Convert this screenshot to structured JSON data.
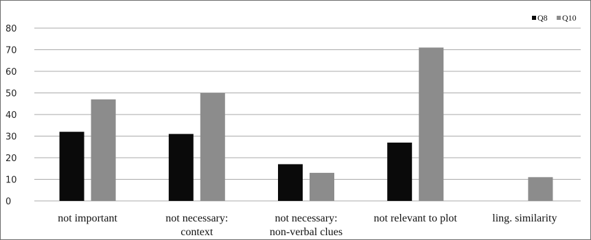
{
  "chart_data": {
    "type": "bar",
    "categories": [
      [
        "not important"
      ],
      [
        "not necessary:",
        "context"
      ],
      [
        "not necessary:",
        "non-verbal clues"
      ],
      [
        "not relevant to plot"
      ],
      [
        "ling. similarity"
      ]
    ],
    "series": [
      {
        "name": "Q8",
        "color": "#0a0a0a",
        "values": [
          32,
          31,
          17,
          27,
          0
        ]
      },
      {
        "name": "Q10",
        "color": "#8c8c8c",
        "values": [
          47,
          50,
          13,
          71,
          11
        ]
      }
    ],
    "ylim": [
      0,
      80
    ],
    "yticks": [
      "0",
      "10",
      "20",
      "30",
      "40",
      "50",
      "60",
      "70",
      "80"
    ],
    "grid": true,
    "legend_position": "top-right",
    "title": "",
    "xlabel": "",
    "ylabel": ""
  }
}
